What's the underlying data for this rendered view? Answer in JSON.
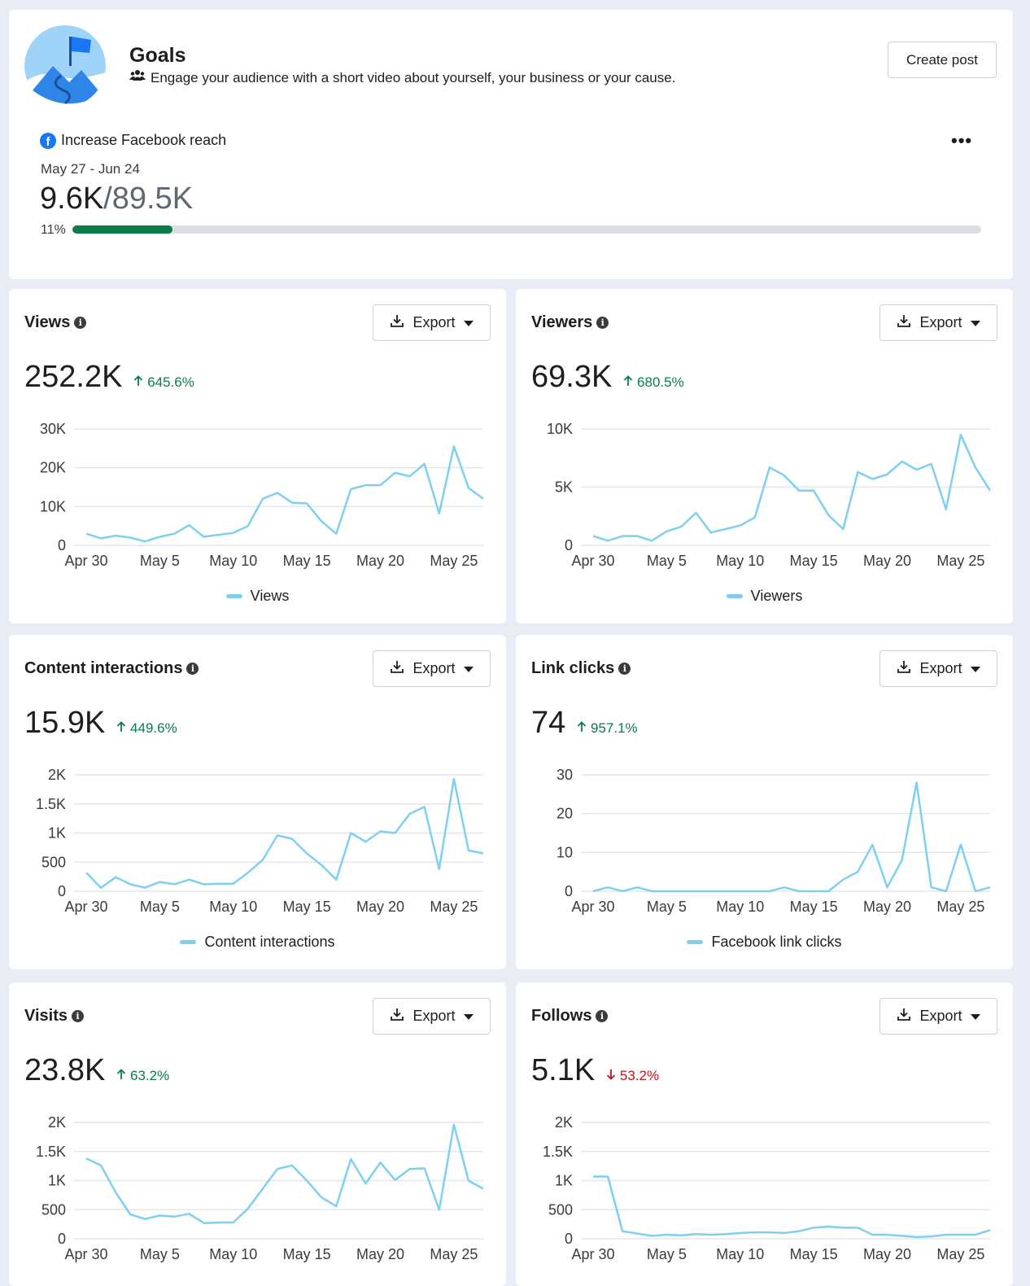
{
  "goal": {
    "title": "Goals",
    "subtitle": "Engage your audience with a short video about yourself, your business or your cause.",
    "create_post_label": "Create post",
    "reach_label": "Increase Facebook reach",
    "date_range": "May 27 - Jun 24",
    "current": "9.6K",
    "target": "/89.5K",
    "percent_label": "11%",
    "percent": 0.11,
    "more_label": "•••",
    "icons": {
      "avatar": "flag-mountain-icon",
      "audience": "people-icon",
      "platform": "facebook-icon",
      "more": "more-options-icon"
    },
    "progress_color": "#0a7c4a"
  },
  "common": {
    "export_label": "Export",
    "x_ticks": [
      "Apr 30",
      "May 5",
      "May 10",
      "May 15",
      "May 20",
      "May 25"
    ],
    "line_color": "#7fd0f0",
    "up_color": "#0a7c4a",
    "down_color": "#c0141d"
  },
  "metrics": [
    {
      "id": "views",
      "title": "Views",
      "value": "252.2K",
      "change": "645.6%",
      "direction": "up",
      "legend": "Views",
      "chart_data": {
        "type": "line",
        "x": [
          "Apr 30",
          "May 1",
          "May 2",
          "May 3",
          "May 4",
          "May 5",
          "May 6",
          "May 7",
          "May 8",
          "May 9",
          "May 10",
          "May 11",
          "May 12",
          "May 13",
          "May 14",
          "May 15",
          "May 16",
          "May 17",
          "May 18",
          "May 19",
          "May 20",
          "May 21",
          "May 22",
          "May 23",
          "May 24",
          "May 25",
          "May 26",
          "May 27"
        ],
        "series": [
          {
            "name": "Views",
            "values": [
              3000,
              1800,
              2500,
              2000,
              1000,
              2200,
              3000,
              5200,
              2200,
              2700,
              3200,
              5000,
              12000,
              13500,
              11000,
              10800,
              6200,
              3000,
              14500,
              15500,
              15500,
              18700,
              17800,
              21000,
              8200,
              25500,
              14800,
              12000
            ]
          }
        ],
        "yticks": [
          "0",
          "10K",
          "20K",
          "30K"
        ],
        "ylim": [
          0,
          30000
        ]
      }
    },
    {
      "id": "viewers",
      "title": "Viewers",
      "value": "69.3K",
      "change": "680.5%",
      "direction": "up",
      "legend": "Viewers",
      "chart_data": {
        "type": "line",
        "x": [
          "Apr 30",
          "May 1",
          "May 2",
          "May 3",
          "May 4",
          "May 5",
          "May 6",
          "May 7",
          "May 8",
          "May 9",
          "May 10",
          "May 11",
          "May 12",
          "May 13",
          "May 14",
          "May 15",
          "May 16",
          "May 17",
          "May 18",
          "May 19",
          "May 20",
          "May 21",
          "May 22",
          "May 23",
          "May 24",
          "May 25",
          "May 26",
          "May 27"
        ],
        "series": [
          {
            "name": "Viewers",
            "values": [
              800,
              400,
              800,
              800,
              400,
              1200,
              1600,
              2800,
              1100,
              1400,
              1700,
              2400,
              6700,
              6000,
              4700,
              4700,
              2600,
              1400,
              6300,
              5700,
              6100,
              7200,
              6500,
              7000,
              3100,
              9500,
              6700,
              4700
            ]
          }
        ],
        "yticks": [
          "0",
          "5K",
          "10K"
        ],
        "ylim": [
          0,
          10000
        ]
      }
    },
    {
      "id": "interactions",
      "title": "Content interactions",
      "value": "15.9K",
      "change": "449.6%",
      "direction": "up",
      "legend": "Content interactions",
      "chart_data": {
        "type": "line",
        "x": [
          "Apr 30",
          "May 1",
          "May 2",
          "May 3",
          "May 4",
          "May 5",
          "May 6",
          "May 7",
          "May 8",
          "May 9",
          "May 10",
          "May 11",
          "May 12",
          "May 13",
          "May 14",
          "May 15",
          "May 16",
          "May 17",
          "May 18",
          "May 19",
          "May 20",
          "May 21",
          "May 22",
          "May 23",
          "May 24",
          "May 25",
          "May 26",
          "May 27"
        ],
        "series": [
          {
            "name": "Content interactions",
            "values": [
              320,
              60,
              240,
              120,
              60,
              160,
              120,
              200,
              120,
              130,
              130,
              320,
              540,
              960,
              900,
              650,
              450,
              200,
              1000,
              850,
              1030,
              1000,
              1330,
              1450,
              380,
              1930,
              700,
              650
            ]
          }
        ],
        "yticks": [
          "0",
          "500",
          "1K",
          "1.5K",
          "2K"
        ],
        "ylim": [
          0,
          2000
        ]
      }
    },
    {
      "id": "links",
      "title": "Link clicks",
      "value": "74",
      "change": "957.1%",
      "direction": "up",
      "legend": "Facebook link clicks",
      "chart_data": {
        "type": "line",
        "x": [
          "Apr 30",
          "May 1",
          "May 2",
          "May 3",
          "May 4",
          "May 5",
          "May 6",
          "May 7",
          "May 8",
          "May 9",
          "May 10",
          "May 11",
          "May 12",
          "May 13",
          "May 14",
          "May 15",
          "May 16",
          "May 17",
          "May 18",
          "May 19",
          "May 20",
          "May 21",
          "May 22",
          "May 23",
          "May 24",
          "May 25",
          "May 26",
          "May 27"
        ],
        "series": [
          {
            "name": "Facebook link clicks",
            "values": [
              0,
              1,
              0,
              1,
              0,
              0,
              0,
              0,
              0,
              0,
              0,
              0,
              0,
              1,
              0,
              0,
              0,
              3,
              5,
              12,
              1,
              8,
              28,
              1,
              0,
              12,
              0,
              1
            ]
          }
        ],
        "yticks": [
          "0",
          "10",
          "20",
          "30"
        ],
        "ylim": [
          0,
          30
        ]
      }
    },
    {
      "id": "visits",
      "title": "Visits",
      "value": "23.8K",
      "change": "63.2%",
      "direction": "up",
      "legend": "",
      "chart_data": {
        "type": "line",
        "x": [
          "Apr 30",
          "May 1",
          "May 2",
          "May 3",
          "May 4",
          "May 5",
          "May 6",
          "May 7",
          "May 8",
          "May 9",
          "May 10",
          "May 11",
          "May 12",
          "May 13",
          "May 14",
          "May 15",
          "May 16",
          "May 17",
          "May 18",
          "May 19",
          "May 20",
          "May 21",
          "May 22",
          "May 23",
          "May 24",
          "May 25",
          "May 26",
          "May 27"
        ],
        "series": [
          {
            "name": "Visits",
            "values": [
              1380,
              1260,
              800,
              420,
              340,
              400,
              380,
              430,
              270,
              280,
              280,
              520,
              860,
              1200,
              1260,
              1000,
              710,
              560,
              1370,
              950,
              1310,
              1010,
              1200,
              1210,
              500,
              1960,
              1000,
              860
            ]
          }
        ],
        "yticks": [
          "0",
          "500",
          "1K",
          "1.5K",
          "2K"
        ],
        "ylim": [
          0,
          2000
        ]
      }
    },
    {
      "id": "follows",
      "title": "Follows",
      "value": "5.1K",
      "change": "53.2%",
      "direction": "down",
      "legend": "",
      "chart_data": {
        "type": "line",
        "x": [
          "Apr 30",
          "May 1",
          "May 2",
          "May 3",
          "May 4",
          "May 5",
          "May 6",
          "May 7",
          "May 8",
          "May 9",
          "May 10",
          "May 11",
          "May 12",
          "May 13",
          "May 14",
          "May 15",
          "May 16",
          "May 17",
          "May 18",
          "May 19",
          "May 20",
          "May 21",
          "May 22",
          "May 23",
          "May 24",
          "May 25",
          "May 26",
          "May 27"
        ],
        "series": [
          {
            "name": "Follows",
            "values": [
              1070,
              1070,
              130,
              90,
              50,
              70,
              60,
              80,
              70,
              80,
              100,
              110,
              110,
              100,
              130,
              190,
              210,
              190,
              190,
              70,
              70,
              50,
              30,
              40,
              70,
              70,
              70,
              150
            ]
          }
        ],
        "yticks": [
          "0",
          "500",
          "1K",
          "1.5K",
          "2K"
        ],
        "ylim": [
          0,
          2000
        ]
      }
    }
  ]
}
